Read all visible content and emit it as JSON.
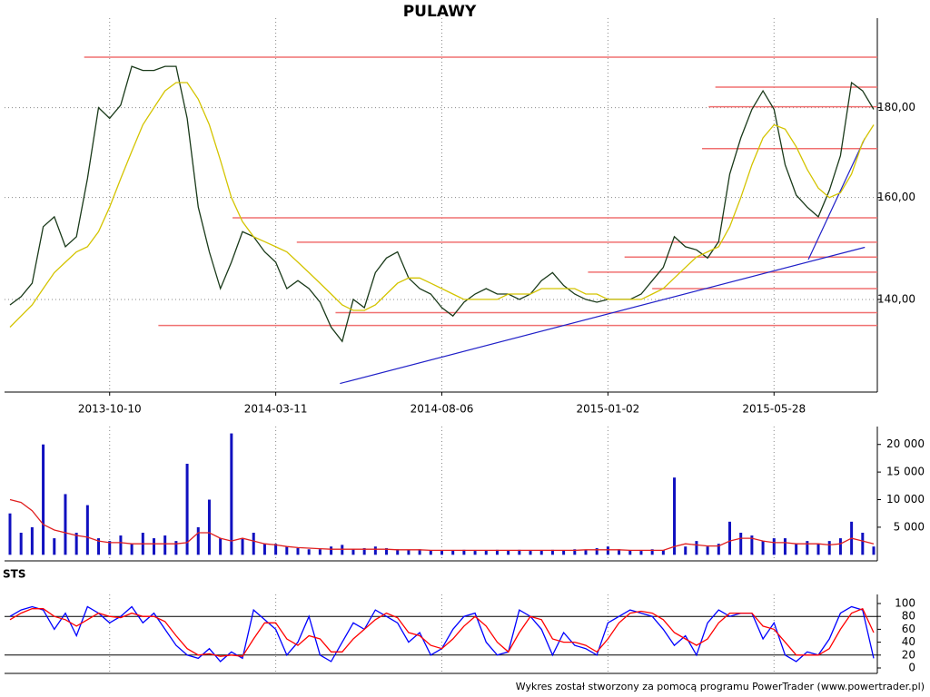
{
  "chart_data": [
    {
      "type": "line",
      "title": "PULAWY",
      "log": true,
      "categories": [
        null,
        null,
        null,
        null,
        null,
        null,
        null,
        null,
        null,
        "2013-10-10",
        null,
        null,
        null,
        null,
        null,
        null,
        null,
        null,
        null,
        null,
        null,
        null,
        null,
        null,
        "2014-03-11",
        null,
        null,
        null,
        null,
        null,
        null,
        null,
        null,
        null,
        null,
        null,
        null,
        null,
        null,
        "2014-08-06",
        null,
        null,
        null,
        null,
        null,
        null,
        null,
        null,
        null,
        null,
        null,
        null,
        null,
        null,
        "2015-01-02",
        null,
        null,
        null,
        null,
        null,
        null,
        null,
        null,
        null,
        null,
        null,
        null,
        null,
        null,
        "2015-05-28",
        null,
        null,
        null,
        null,
        null,
        null,
        null,
        null,
        null
      ],
      "series": [
        {
          "color": "#1a3a1a",
          "values": [
            139,
            140.5,
            143,
            154,
            156,
            150,
            152,
            164,
            180,
            177.5,
            180.6,
            190,
            189,
            189,
            190,
            190,
            177.5,
            158,
            149,
            142,
            147,
            153,
            152,
            149,
            147,
            142,
            143.5,
            142,
            139.5,
            135,
            132.5,
            140,
            138.5,
            145,
            147.8,
            149,
            144,
            142,
            141,
            138.5,
            137,
            139.5,
            141,
            142,
            141,
            141,
            140,
            141,
            143.5,
            145,
            142.6,
            141,
            140,
            139.5,
            140,
            140,
            140,
            141,
            143.5,
            146,
            152,
            150,
            149.4,
            147.8,
            151,
            165,
            173,
            179.6,
            184,
            179.6,
            167,
            160.5,
            158,
            156,
            161.5,
            169,
            186,
            184,
            179.6
          ]
        },
        {
          "color": "#d4c400",
          "values": [
            135,
            137,
            139,
            142,
            145,
            147,
            149,
            150,
            153,
            158,
            164,
            170,
            176,
            180,
            184,
            186,
            186,
            182,
            176,
            168,
            160,
            155,
            152,
            151,
            150,
            149,
            147,
            145,
            143,
            141,
            139,
            138,
            138,
            139,
            141,
            143,
            144,
            144,
            143,
            142,
            141,
            140,
            140,
            140,
            140,
            141,
            141,
            141,
            142,
            142,
            142,
            142,
            141,
            141,
            140,
            140,
            140,
            140,
            141,
            142,
            144,
            146,
            148,
            149,
            150,
            154,
            160,
            167,
            173,
            176,
            175,
            171,
            166,
            162,
            160,
            161,
            165,
            172,
            176
          ]
        }
      ],
      "levels": [
        {
          "value": 192.3,
          "start": 6.7
        },
        {
          "value": 184.9,
          "start": 63.7
        },
        {
          "value": 180.2,
          "start": 63.1
        },
        {
          "value": 170.6,
          "start": 62.5
        },
        {
          "value": 155.8,
          "start": 20.1
        },
        {
          "value": 150.9,
          "start": 25.9
        },
        {
          "value": 148,
          "start": 55.5
        },
        {
          "value": 145.1,
          "start": 52.2
        },
        {
          "value": 142,
          "start": 58
        },
        {
          "value": 137.6,
          "start": 29.4
        },
        {
          "value": 135.3,
          "start": 13.4
        }
      ],
      "level_color": "#f07070",
      "trendlines": [
        {
          "x": [
            29.8,
            77.2
          ],
          "y": [
            125.4,
            149.9
          ]
        },
        {
          "x": [
            72.1,
            77.2
          ],
          "y": [
            147.5,
            172.9
          ]
        }
      ],
      "trend_color": "#2020c8",
      "ylim": [
        124,
        200
      ],
      "yticks": [
        {
          "value": 140,
          "label": "140,00"
        },
        {
          "value": 160,
          "label": "160,00"
        },
        {
          "value": 180,
          "label": "180,00"
        }
      ],
      "grid": true
    },
    {
      "type": "bar",
      "series": [
        {
          "color": "#1010c0",
          "values": [
            7500,
            4000,
            5000,
            20000,
            3000,
            11000,
            4000,
            9000,
            3000,
            2500,
            3500,
            2000,
            4000,
            3000,
            3500,
            2500,
            16500,
            5000,
            10000,
            3000,
            22000,
            3000,
            4000,
            2000,
            2000,
            1500,
            1200,
            1000,
            1000,
            1500,
            1800,
            1000,
            1200,
            1500,
            1200,
            1000,
            900,
            1000,
            800,
            700,
            800,
            900,
            700,
            800,
            900,
            800,
            900,
            700,
            800,
            900,
            800,
            1000,
            900,
            1200,
            1500,
            1000,
            800,
            700,
            1000,
            800,
            14000,
            1500,
            2500,
            1500,
            2000,
            6000,
            4000,
            3500,
            2500,
            3000,
            3000,
            2000,
            2500,
            2000,
            2500,
            3000,
            6000,
            4000,
            1500
          ]
        },
        {
          "color": "#e02020",
          "values": [
            10000,
            9500,
            8000,
            5500,
            4500,
            4000,
            3500,
            3200,
            2500,
            2200,
            2200,
            2000,
            2000,
            2000,
            2000,
            2000,
            2200,
            4000,
            4000,
            3000,
            2500,
            3000,
            2500,
            2000,
            1800,
            1500,
            1300,
            1200,
            1100,
            1000,
            1000,
            1000,
            1000,
            1000,
            1000,
            900,
            900,
            900,
            800,
            800,
            800,
            800,
            800,
            800,
            800,
            800,
            800,
            800,
            800,
            800,
            800,
            800,
            900,
            900,
            900,
            900,
            800,
            800,
            800,
            800,
            1500,
            2000,
            1800,
            1600,
            1600,
            2500,
            3000,
            3000,
            2500,
            2200,
            2200,
            2000,
            2000,
            2000,
            1800,
            2000,
            3000,
            2500,
            2000
          ]
        }
      ],
      "ylim": [
        -1100,
        21600
      ],
      "yticks": [
        {
          "value": 5000,
          "label": "5 000"
        },
        {
          "value": 10000,
          "label": "10 000"
        },
        {
          "value": 15000,
          "label": "15 000"
        },
        {
          "value": 20000,
          "label": "20 000"
        }
      ]
    },
    {
      "type": "line",
      "title": "STS",
      "series": [
        {
          "color": "#0000ff",
          "values": [
            80,
            90,
            95,
            90,
            60,
            85,
            50,
            95,
            85,
            70,
            80,
            95,
            70,
            85,
            60,
            35,
            20,
            15,
            30,
            10,
            25,
            15,
            90,
            75,
            60,
            20,
            40,
            80,
            20,
            10,
            40,
            70,
            60,
            90,
            80,
            70,
            40,
            55,
            20,
            30,
            60,
            80,
            85,
            40,
            20,
            25,
            90,
            80,
            60,
            20,
            55,
            35,
            30,
            20,
            70,
            80,
            90,
            85,
            80,
            60,
            35,
            50,
            20,
            70,
            90,
            80,
            85,
            85,
            45,
            70,
            20,
            10,
            25,
            20,
            45,
            85,
            95,
            90,
            15
          ]
        },
        {
          "color": "#ff0000",
          "values": [
            75,
            85,
            92,
            92,
            80,
            75,
            65,
            75,
            85,
            80,
            78,
            85,
            80,
            80,
            72,
            50,
            30,
            20,
            22,
            18,
            20,
            18,
            45,
            70,
            70,
            45,
            35,
            50,
            45,
            25,
            25,
            45,
            60,
            75,
            85,
            78,
            55,
            50,
            35,
            30,
            45,
            65,
            80,
            65,
            40,
            25,
            55,
            80,
            75,
            45,
            40,
            40,
            35,
            25,
            45,
            70,
            85,
            88,
            85,
            75,
            55,
            45,
            35,
            45,
            70,
            85,
            85,
            85,
            65,
            60,
            40,
            20,
            20,
            20,
            30,
            60,
            85,
            92,
            55
          ]
        }
      ],
      "hlines": [
        20,
        80
      ],
      "ylim": [
        0,
        100
      ],
      "yticks": [
        0,
        20,
        40,
        60,
        80,
        100
      ]
    }
  ],
  "footer": "Wykres został stworzony za pomocą programu PowerTrader (www.powertrader.pl)"
}
